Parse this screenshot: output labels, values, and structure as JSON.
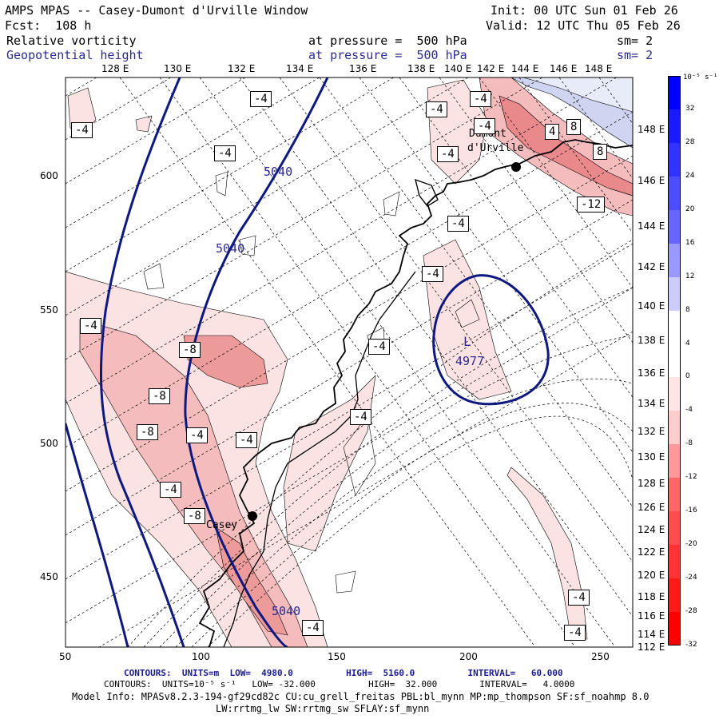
{
  "header": {
    "title": "AMPS MPAS -- Casey-Dumont d'Urville Window",
    "init": "Init: 00 UTC Sun 01 Feb 26",
    "fcst": "Fcst:  108 h",
    "valid": "Valid: 12 UTC Thu 05 Feb 26",
    "field1": "Relative vorticity",
    "field1_level": "at pressure =  500 hPa",
    "field1_sm": "sm= 2",
    "field2": "Geopotential height",
    "field2_level": "at pressure =  500 hPa",
    "field2_sm": "sm= 2"
  },
  "colors": {
    "height_contour": "#0d1880",
    "coast": "#000000",
    "positive": "#c9cfee",
    "negative_light": "#fbe5e5",
    "negative_mid": "#f2b7b7",
    "negative_strong": "#e98d8d"
  },
  "lon_labels": [
    "128 E",
    "130 E",
    "132 E",
    "134 E",
    "136 E",
    "138 E",
    "140 E",
    "142 E",
    "144 E",
    "146 E",
    "148 E"
  ],
  "lat_labels": [
    "148 E",
    "146 E",
    "144 E",
    "142 E",
    "140 E",
    "138 E",
    "136 E",
    "134 E",
    "132 E",
    "130 E",
    "128 E",
    "126 E",
    "124 E",
    "122 E",
    "120 E",
    "118 E",
    "116 E",
    "114 E",
    "112 E"
  ],
  "x_ticks": [
    "50",
    "100",
    "150",
    "200",
    "250"
  ],
  "y_ticks": [
    "600",
    "550",
    "500",
    "450"
  ],
  "colorbar": {
    "unit": "10⁻⁵ s⁻¹",
    "labels": [
      "32",
      "28",
      "24",
      "20",
      "16",
      "12",
      "8",
      "4",
      "0",
      "-4",
      "-8",
      "-12",
      "-16",
      "-20",
      "-24",
      "-28",
      "-32"
    ],
    "colors": [
      "#0000ff",
      "#1a1aff",
      "#3333ff",
      "#4d4dff",
      "#6666ff",
      "#9999ff",
      "#ccccff",
      "#ffffff",
      "#ffffff",
      "#ffe5e5",
      "#ffcccc",
      "#ff9999",
      "#ff6666",
      "#ff4d4d",
      "#ff3333",
      "#ff1a1a",
      "#ff0000"
    ]
  },
  "places": {
    "casey": "Casey",
    "dumont1": "Dumont",
    "dumont2": "d'Urville"
  },
  "height_labels": [
    "5040",
    "5040",
    "5040",
    "4977"
  ],
  "low_label": "L",
  "vort_labels": [
    "-4",
    "-4",
    "-4",
    "-4",
    "-4",
    "-4",
    "-4",
    "-4",
    "-4",
    "-4",
    "-4",
    "-4",
    "-4",
    "-4",
    "-4",
    "-4",
    "-8",
    "-8",
    "-8",
    "-8",
    "-12",
    "4",
    "8",
    "8"
  ],
  "footer": {
    "line1": "CONTOURS:  UNITS=m  LOW=  4980.0          HIGH=  5160.0          INTERVAL=   60.000",
    "line2": "CONTOURS:  UNITS=10⁻⁵ s⁻¹   LOW= -32.000          HIGH=  32.000        INTERVAL=   4.0000",
    "line3": "Model Info: MPASv8.2.3-194-gf29cd82c CU:cu_grell_freitas PBL:bl_mynn MP:mp_thompson SF:sf_noahmp 8.0",
    "line4": "LW:rrtmg_lw SW:rrtmg_sw SFLAY:sf_mynn"
  }
}
